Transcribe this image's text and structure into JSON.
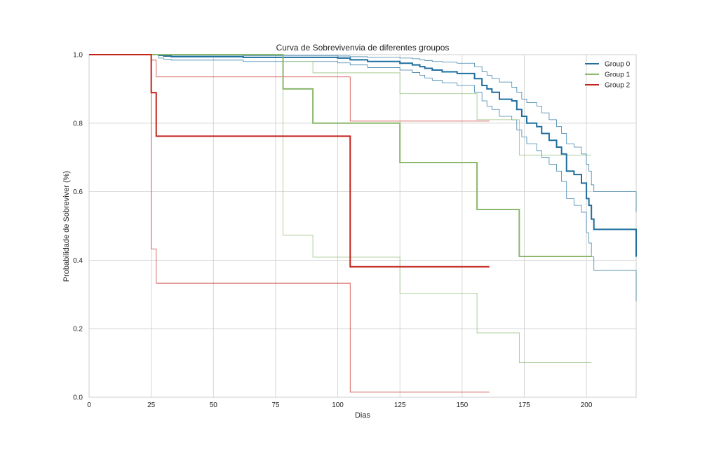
{
  "chart_data": {
    "type": "line",
    "subtype": "kaplan-meier step",
    "title": "Curva de Sobrevivenvia de diferentes groupos",
    "xlabel": "Dias",
    "ylabel": "Probabilidade de Sobreviver (%)",
    "xlim": [
      0,
      220
    ],
    "ylim": [
      0,
      1
    ],
    "xticks": [
      0,
      25,
      50,
      75,
      100,
      125,
      150,
      175,
      200
    ],
    "yticks": [
      0.0,
      0.2,
      0.4,
      0.6,
      0.8,
      1.0
    ],
    "xtick_labels": [
      "0",
      "25",
      "50",
      "75",
      "100",
      "125",
      "150",
      "175",
      "200"
    ],
    "ytick_labels": [
      "0.0",
      "0.2",
      "0.4",
      "0.6",
      "0.8",
      "1.0"
    ],
    "grid": true,
    "legend_position": "top-right",
    "series": [
      {
        "name": "Group 0",
        "color": "#1f6f9f",
        "x": [
          0,
          28,
          30,
          33,
          62,
          100,
          105,
          112,
          125,
          130,
          133,
          135,
          138,
          142,
          148,
          155,
          158,
          160,
          162,
          165,
          170,
          172,
          174,
          176,
          180,
          182,
          185,
          188,
          190,
          192,
          195,
          198,
          200,
          201,
          202,
          203,
          220
        ],
        "y": [
          1.0,
          0.998,
          0.996,
          0.994,
          0.992,
          0.99,
          0.985,
          0.98,
          0.975,
          0.97,
          0.965,
          0.96,
          0.955,
          0.95,
          0.945,
          0.93,
          0.91,
          0.9,
          0.89,
          0.87,
          0.865,
          0.84,
          0.82,
          0.8,
          0.79,
          0.77,
          0.75,
          0.73,
          0.71,
          0.66,
          0.65,
          0.625,
          0.58,
          0.56,
          0.52,
          0.49,
          0.41
        ],
        "ci_upper": [
          1.0,
          1.0,
          0.999,
          0.998,
          0.997,
          0.996,
          0.994,
          0.992,
          0.99,
          0.988,
          0.985,
          0.983,
          0.98,
          0.978,
          0.975,
          0.965,
          0.95,
          0.94,
          0.93,
          0.92,
          0.905,
          0.89,
          0.87,
          0.86,
          0.85,
          0.83,
          0.81,
          0.79,
          0.77,
          0.74,
          0.73,
          0.71,
          0.68,
          0.66,
          0.62,
          0.6,
          0.54
        ],
        "ci_lower": [
          1.0,
          0.99,
          0.987,
          0.984,
          0.98,
          0.976,
          0.97,
          0.962,
          0.955,
          0.948,
          0.94,
          0.932,
          0.925,
          0.918,
          0.91,
          0.89,
          0.865,
          0.85,
          0.84,
          0.82,
          0.81,
          0.78,
          0.76,
          0.74,
          0.72,
          0.7,
          0.68,
          0.66,
          0.63,
          0.58,
          0.56,
          0.54,
          0.48,
          0.45,
          0.41,
          0.37,
          0.28
        ]
      },
      {
        "name": "Group 1",
        "color": "#8ab86c",
        "x": [
          0,
          78,
          90,
          125,
          156,
          173,
          202
        ],
        "y": [
          1.0,
          0.9,
          0.8,
          0.685,
          0.548,
          0.411,
          0.411
        ],
        "ci_upper": [
          1.0,
          0.98,
          0.947,
          0.886,
          0.81,
          0.707,
          0.707
        ],
        "ci_lower": [
          1.0,
          0.473,
          0.409,
          0.304,
          0.188,
          0.101,
          0.101
        ]
      },
      {
        "name": "Group 2",
        "color": "#c4221c",
        "x": [
          0,
          25,
          27,
          105,
          161
        ],
        "y": [
          1.0,
          0.889,
          0.762,
          0.381,
          0.381
        ],
        "ci_upper": [
          1.0,
          0.984,
          0.935,
          0.806,
          0.806
        ],
        "ci_lower": [
          1.0,
          0.433,
          0.333,
          0.015,
          0.015
        ]
      }
    ]
  }
}
